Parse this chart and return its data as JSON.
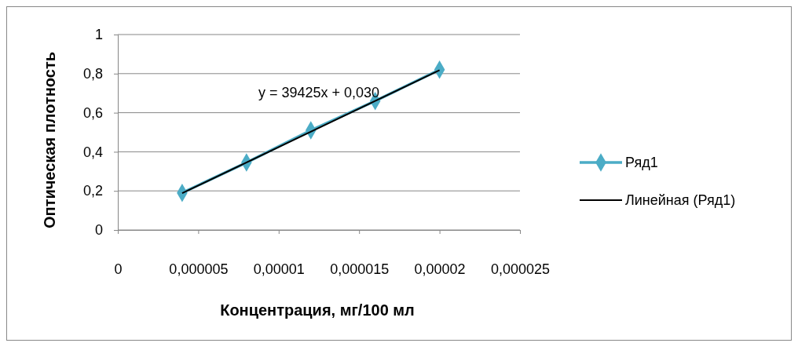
{
  "chart_data": {
    "type": "line",
    "xlabel": "Концентрация,  мг/100 мл",
    "ylabel": "Оптическая плотность",
    "annotations": [
      "y = 39425x + 0,030"
    ],
    "series": [
      {
        "name": "Ряд1",
        "color": "#4bacc6",
        "marker": "diamond",
        "x": [
          4e-06,
          8e-06,
          1.2e-05,
          1.6e-05,
          2e-05
        ],
        "values": [
          0.19,
          0.345,
          0.51,
          0.66,
          0.82
        ]
      },
      {
        "name": "Линейная (Ряд1)",
        "color": "#000000",
        "marker": "none",
        "x": [
          4e-06,
          2e-05
        ],
        "values": [
          0.188,
          0.818
        ]
      }
    ],
    "xlim": [
      0,
      2.5e-05
    ],
    "xticks": [
      0,
      {
        "value": 5e-06,
        "label": "0,000005"
      },
      {
        "value": 1e-05,
        "label": "0,00001"
      },
      {
        "value": 1.5e-05,
        "label": "0,000015"
      },
      {
        "value": 2e-05,
        "label": "0,00002"
      },
      {
        "value": 2.5e-05,
        "label": "0,000025"
      }
    ],
    "ylim": [
      0,
      1
    ],
    "yticks": [
      0,
      {
        "value": 0.2,
        "label": "0,2"
      },
      {
        "value": 0.4,
        "label": "0,4"
      },
      {
        "value": 0.6,
        "label": "0,6"
      },
      {
        "value": 0.8,
        "label": "0,8"
      },
      1
    ],
    "grid": "y",
    "legend": "right"
  }
}
